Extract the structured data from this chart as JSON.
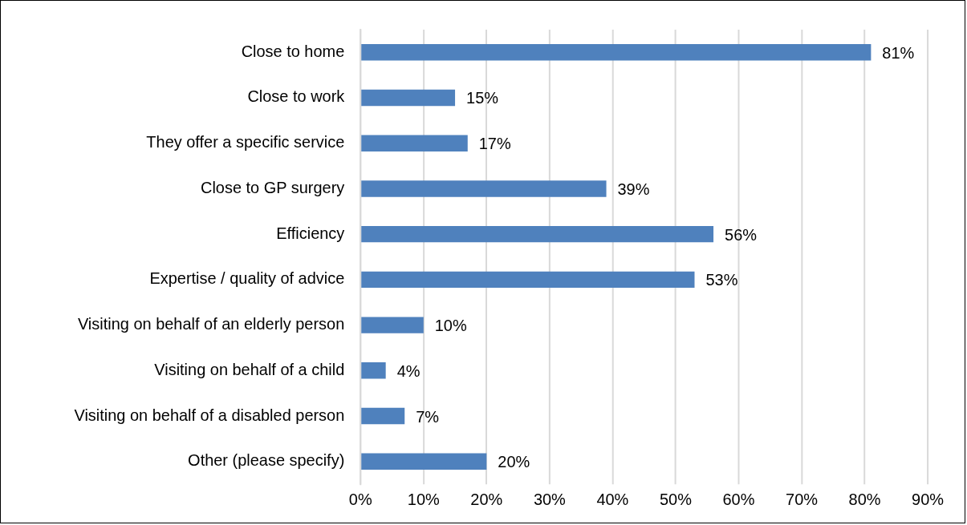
{
  "chart_data": {
    "type": "bar",
    "orientation": "horizontal",
    "categories": [
      "Close to home",
      "Close to work",
      "They offer a specific service",
      "Close to GP surgery",
      "Efficiency",
      "Expertise / quality of advice",
      "Visiting on behalf of an elderly person",
      "Visiting on behalf of a child",
      "Visiting on behalf of a disabled person",
      "Other (please specify)"
    ],
    "values": [
      81,
      15,
      17,
      39,
      56,
      53,
      10,
      4,
      7,
      20
    ],
    "value_labels": [
      "81%",
      "15%",
      "17%",
      "39%",
      "56%",
      "53%",
      "10%",
      "4%",
      "7%",
      "20%"
    ],
    "color": "#4f81bd",
    "xlim": [
      0,
      90
    ],
    "xticks": [
      {
        "value": 0,
        "label": "0%"
      },
      {
        "value": 10,
        "label": "10%"
      },
      {
        "value": 20,
        "label": "20%"
      },
      {
        "value": 30,
        "label": "30%"
      },
      {
        "value": 40,
        "label": "40%"
      },
      {
        "value": 50,
        "label": "50%"
      },
      {
        "value": 60,
        "label": "60%"
      },
      {
        "value": 70,
        "label": "70%"
      },
      {
        "value": 80,
        "label": "80%"
      },
      {
        "value": 90,
        "label": "90%"
      }
    ],
    "grid": "x",
    "legend": false
  }
}
